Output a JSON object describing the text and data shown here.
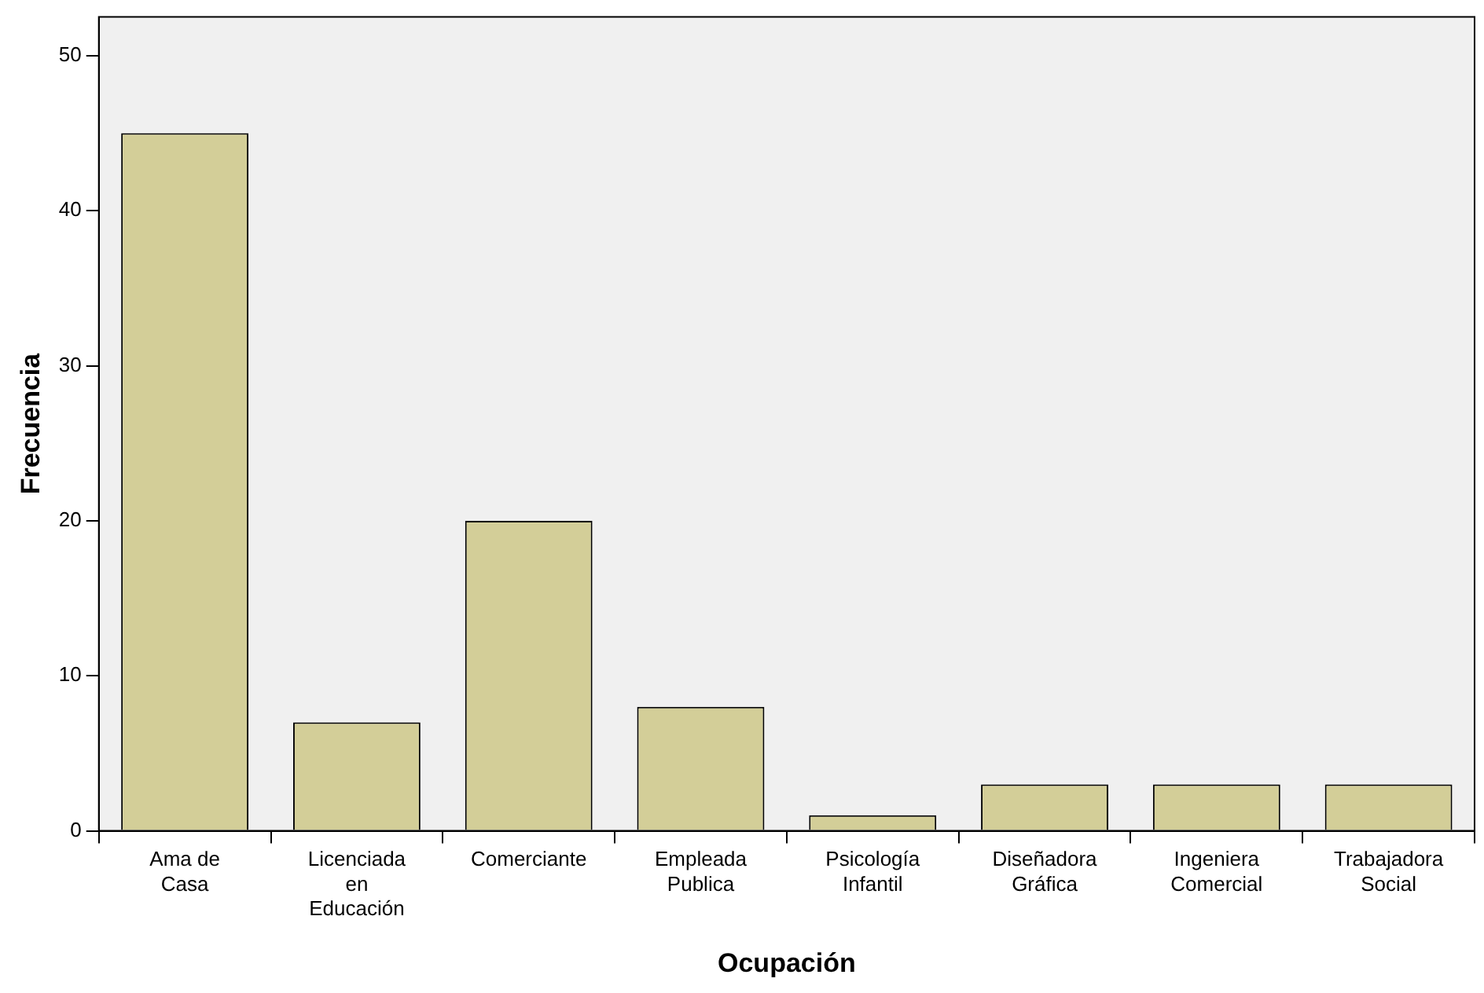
{
  "chart_data": {
    "type": "bar",
    "xlabel": "Ocupación",
    "ylabel": "Frecuencia",
    "categories": [
      "Ama de\nCasa",
      "Licenciada\nen\nEducación",
      "Comerciante",
      "Empleada\nPublica",
      "Psicología\nInfantil",
      "Diseñadora\nGráfica",
      "Ingeniera\nComercial",
      "Trabajadora\nSocial"
    ],
    "values": [
      45,
      7,
      20,
      8,
      1,
      3,
      3,
      3
    ],
    "color": "#d3ce98",
    "ylim": [
      0,
      52.5
    ],
    "yticks": [
      0,
      10,
      20,
      30,
      40,
      50
    ],
    "grid": false,
    "legend": false
  }
}
